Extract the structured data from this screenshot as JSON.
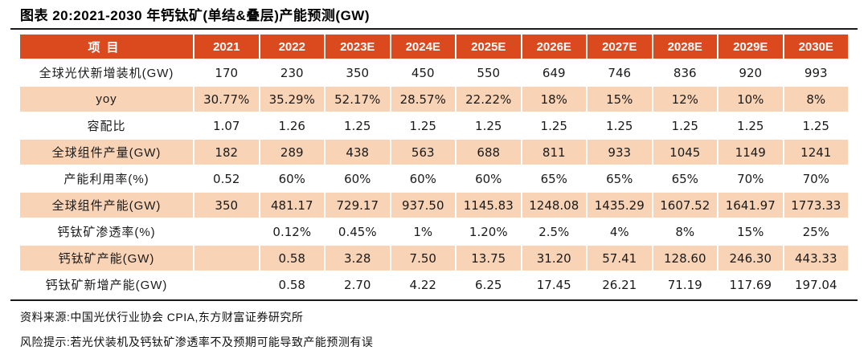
{
  "title": "图表 20:2021-2030 年钙钛矿(单结&叠层)产能预测(GW)",
  "colors": {
    "header_bg": "#DB4A1F",
    "row_alt_bg": "#F8D3B6",
    "header_text": "#FFFFFF",
    "rule": "#1A1A1A"
  },
  "chart_data": {
    "type": "table",
    "title": "图表 20:2021-2030 年钙钛矿(单结&叠层)产能预测(GW)",
    "columns": [
      "项目",
      "2021",
      "2022",
      "2023E",
      "2024E",
      "2025E",
      "2026E",
      "2027E",
      "2028E",
      "2029E",
      "2030E"
    ],
    "rows": [
      [
        "全球光伏新增装机(GW)",
        "170",
        "230",
        "350",
        "450",
        "550",
        "649",
        "746",
        "836",
        "920",
        "993"
      ],
      [
        "yoy",
        "30.77%",
        "35.29%",
        "52.17%",
        "28.57%",
        "22.22%",
        "18%",
        "15%",
        "12%",
        "10%",
        "8%"
      ],
      [
        "容配比",
        "1.07",
        "1.26",
        "1.25",
        "1.25",
        "1.25",
        "1.25",
        "1.25",
        "1.25",
        "1.25",
        "1.25"
      ],
      [
        "全球组件产量(GW)",
        "182",
        "289",
        "438",
        "563",
        "688",
        "811",
        "933",
        "1045",
        "1149",
        "1241"
      ],
      [
        "产能利用率(%)",
        "0.52",
        "60%",
        "60%",
        "60%",
        "60%",
        "65%",
        "65%",
        "65%",
        "70%",
        "70%"
      ],
      [
        "全球组件产能(GW)",
        "350",
        "481.17",
        "729.17",
        "937.50",
        "1145.83",
        "1248.08",
        "1435.29",
        "1607.52",
        "1641.97",
        "1773.33"
      ],
      [
        "钙钛矿渗透率(%)",
        "",
        "0.12%",
        "0.45%",
        "1%",
        "1.20%",
        "2.5%",
        "4%",
        "8%",
        "15%",
        "25%"
      ],
      [
        "钙钛矿产能(GW)",
        "",
        "0.58",
        "3.28",
        "7.50",
        "13.75",
        "31.20",
        "57.41",
        "128.60",
        "246.30",
        "443.33"
      ],
      [
        "钙钛矿新增产能(GW)",
        "",
        "0.58",
        "2.70",
        "4.22",
        "6.25",
        "17.45",
        "26.21",
        "71.19",
        "117.69",
        "197.04"
      ]
    ],
    "legend_position": "none",
    "grid": "cell-separators-white"
  },
  "footer": {
    "source": "资料来源:中国光伏行业协会 CPIA,东方财富证券研究所",
    "risk": "风险提示:若光伏装机及钙钛矿渗透率不及预期可能导致产能预测有误"
  }
}
